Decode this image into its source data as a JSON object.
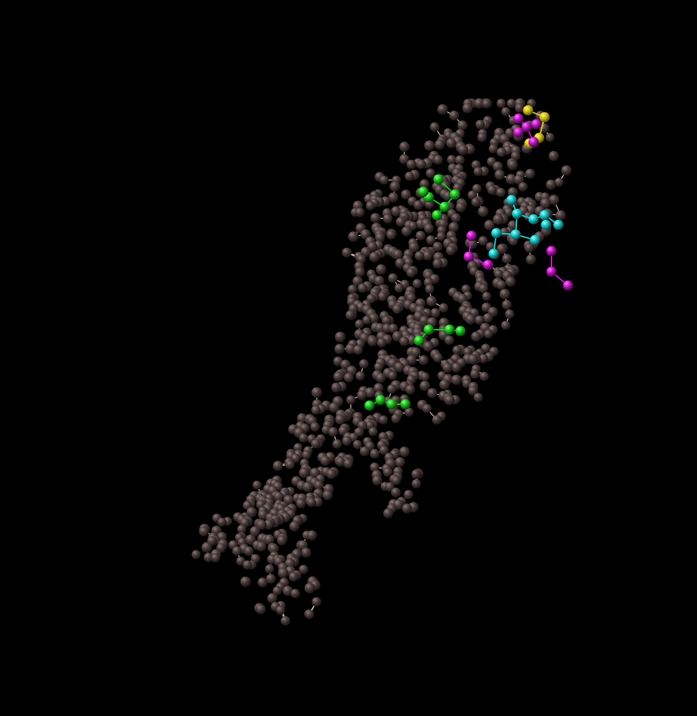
{
  "scene": {
    "background_color": "#000000",
    "render_style": "ball-and-stick",
    "atom_color_default": "#3d3233",
    "bond_color_default": "#bfaea8",
    "highlight_groups": [
      {
        "name": "yellow-residue",
        "color": "#d4c21a"
      },
      {
        "name": "magenta-residue",
        "color": "#c41ac4"
      },
      {
        "name": "green-residue",
        "color": "#1ec21e"
      },
      {
        "name": "cyan-residue",
        "color": "#1ec8c8"
      }
    ]
  }
}
